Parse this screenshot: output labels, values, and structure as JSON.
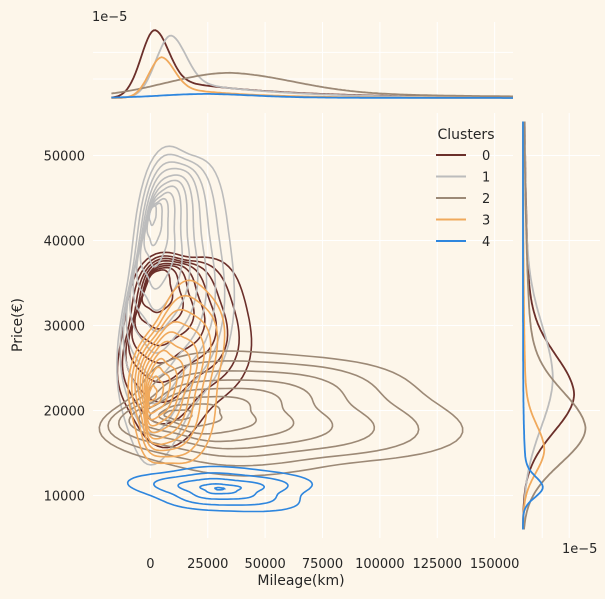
{
  "chart_data": {
    "type": "kde_joint",
    "xlabel": "Mileage(km)",
    "ylabel": "Price(€)",
    "xlim": [
      -25000,
      158000
    ],
    "ylim": [
      5000,
      55000
    ],
    "x_ticks": [
      0,
      25000,
      50000,
      75000,
      100000,
      125000,
      150000
    ],
    "y_ticks": [
      10000,
      20000,
      30000,
      40000,
      50000
    ],
    "top_scale_label": "1e−5",
    "right_scale_label": "1e−5",
    "legend": {
      "title": "Clusters",
      "placement": "upper-right"
    },
    "series": [
      {
        "name": "0",
        "color": "#6b2f2a",
        "center": [
          12000,
          28000
        ],
        "spread": [
          26000,
          11500
        ],
        "rotation": -0.35,
        "levels": [
          1.0,
          0.86,
          0.74,
          0.63,
          0.52,
          0.42,
          0.32,
          0.22
        ],
        "contour_shift": [
          -9000,
          6000
        ],
        "marginal_x": {
          "peak_x": 2000,
          "height": 1.0,
          "width": 6000,
          "tail": 45000
        },
        "marginal_y": {
          "peak_y": 22000,
          "height": 0.72,
          "width": 4500
        }
      },
      {
        "name": "1",
        "color": "#bcbcbc",
        "center": [
          9000,
          33000
        ],
        "spread": [
          22000,
          18500
        ],
        "rotation": -0.15,
        "levels": [
          1.0,
          0.88,
          0.77,
          0.67,
          0.57,
          0.48,
          0.39,
          0.3,
          0.21,
          0.13,
          0.06
        ],
        "contour_shift": [
          -8000,
          10000
        ],
        "marginal_x": {
          "peak_x": 9000,
          "height": 0.92,
          "width": 6500,
          "tail": 40000
        },
        "marginal_y": {
          "peak_y": 24000,
          "height": 0.42,
          "width": 6000
        }
      },
      {
        "name": "2",
        "color": "#9c8976",
        "center": [
          50000,
          19500
        ],
        "spread": [
          70000,
          7200
        ],
        "rotation": 0.0,
        "levels": [
          1.0,
          0.85,
          0.7,
          0.56,
          0.43,
          0.3,
          0.18,
          0.08
        ],
        "contour_shift": [
          -38000,
          0
        ],
        "marginal_x": {
          "peak_x": 35000,
          "height": 0.37,
          "width": 28000,
          "tail": 80000
        },
        "marginal_y": {
          "peak_y": 18000,
          "height": 0.88,
          "width": 4200
        }
      },
      {
        "name": "3",
        "color": "#f0a95c",
        "center": [
          11000,
          24000
        ],
        "spread": [
          18000,
          11000
        ],
        "rotation": -0.25,
        "levels": [
          1.0,
          0.88,
          0.77,
          0.67,
          0.58,
          0.49,
          0.4,
          0.32,
          0.24,
          0.16,
          0.08
        ],
        "contour_shift": [
          -10000,
          -2000
        ],
        "marginal_x": {
          "peak_x": 5000,
          "height": 0.6,
          "width": 5500,
          "tail": 30000
        },
        "marginal_y": {
          "peak_y": 15500,
          "height": 0.3,
          "width": 2800
        }
      },
      {
        "name": "4",
        "color": "#2e86de",
        "center": [
          30000,
          10800
        ],
        "spread": [
          36000,
          2600
        ],
        "rotation": -0.03,
        "levels": [
          1.0,
          0.72,
          0.46,
          0.22,
          0.05
        ],
        "contour_shift": [
          0,
          0
        ],
        "marginal_x": {
          "peak_x": 25000,
          "height": 0.06,
          "width": 20000,
          "tail": 40000
        },
        "marginal_y": {
          "peak_y": 11000,
          "height": 0.28,
          "width": 1200
        }
      }
    ]
  }
}
